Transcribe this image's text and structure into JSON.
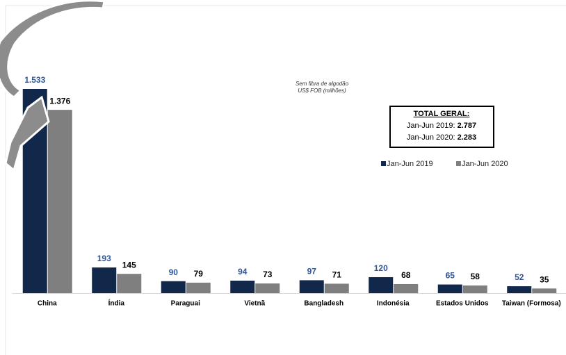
{
  "chart_data": {
    "type": "bar",
    "subtitle": [
      "Sem fibra de algodão",
      "US$ FOB (milhões)"
    ],
    "categories": [
      "China",
      "Índia",
      "Paraguai",
      "Vietnã",
      "Bangladesh",
      "Indonésia",
      "Estados Unidos",
      "Taiwan (Formosa)"
    ],
    "series": [
      {
        "name": "Jan-Jun 2019",
        "color": "#12284a",
        "label_color": "#2f5597",
        "values": [
          1533,
          193,
          90,
          94,
          97,
          120,
          65,
          52
        ],
        "value_labels": [
          "1.533",
          "193",
          "90",
          "94",
          "97",
          "120",
          "65",
          "52"
        ]
      },
      {
        "name": "Jan-Jun 2020",
        "color": "#7f7f7f",
        "label_color": "#000000",
        "values": [
          1376,
          145,
          79,
          73,
          71,
          68,
          58,
          35
        ],
        "value_labels": [
          "1.376",
          "145",
          "79",
          "73",
          "71",
          "68",
          "58",
          "35"
        ]
      }
    ],
    "total_box": {
      "title": "TOTAL GERAL:",
      "lines": [
        {
          "label": "Jan-Jun 2019:",
          "value": "2.787"
        },
        {
          "label": "Jan-Jun 2020:",
          "value": "2.283"
        }
      ]
    }
  }
}
